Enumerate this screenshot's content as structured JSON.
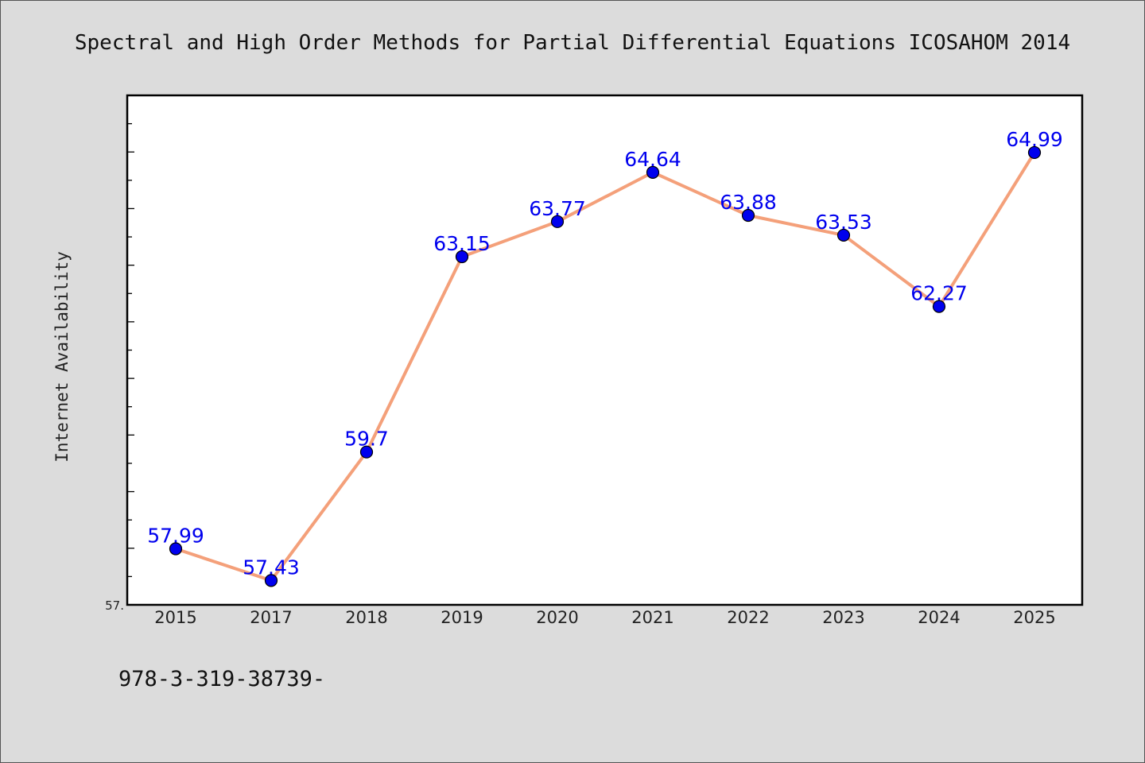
{
  "chart_data": {
    "type": "line",
    "title": "Spectral and High Order Methods for Partial Differential Equations ICOSAHOM 2014",
    "ylabel": "Internet Availability",
    "xlabel": "",
    "categories": [
      "2015",
      "2017",
      "2018",
      "2019",
      "2020",
      "2021",
      "2022",
      "2023",
      "2024",
      "2025"
    ],
    "values": [
      57.99,
      57.43,
      59.7,
      63.15,
      63.77,
      64.64,
      63.88,
      63.53,
      62.27,
      64.99
    ],
    "data_labels": [
      "57.99",
      "57.43",
      "59.7",
      "63.15",
      "63.77",
      "64.64",
      "63.88",
      "63.53",
      "62.27",
      "64.99"
    ],
    "ylim": [
      57.0,
      66.0
    ],
    "ytick_labels": [
      "57."
    ],
    "grid": false,
    "colors": {
      "line": "#f4a07a",
      "marker": "#0000ee",
      "labels": "#0000ee"
    },
    "footer": "978-3-319-38739-"
  }
}
